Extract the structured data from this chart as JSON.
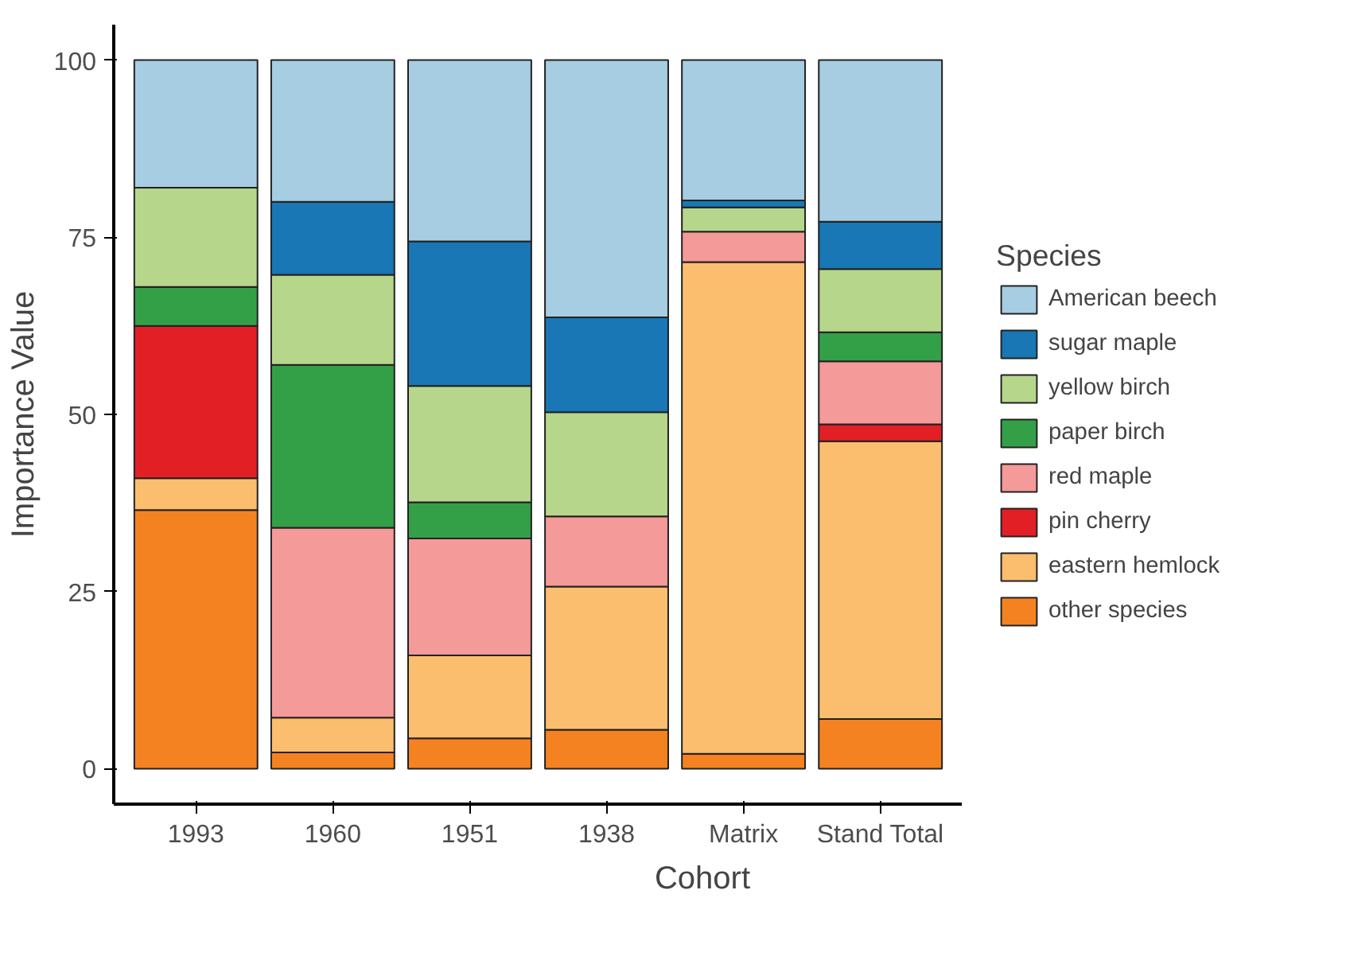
{
  "chart_data": {
    "type": "bar",
    "stacked": true,
    "xlabel": "Cohort",
    "ylabel": "Importance Value",
    "legend_title": "Species",
    "categories": [
      "1993",
      "1960",
      "1951",
      "1938",
      "Matrix",
      "Stand Total"
    ],
    "ylim": [
      -5,
      105
    ],
    "yticks": [
      0,
      25,
      50,
      75,
      100
    ],
    "grid": false,
    "legend": "right",
    "series": [
      {
        "name": "other species",
        "color": "#f58220",
        "values": [
          36.5,
          2.3,
          4.3,
          5.5,
          2.1,
          7
        ]
      },
      {
        "name": "eastern hemlock",
        "color": "#fbbe6e",
        "values": [
          4.5,
          4.9,
          11.7,
          20.2,
          69.4,
          39.2
        ]
      },
      {
        "name": "pin cherry",
        "color": "#e31f26",
        "values": [
          21.5,
          0,
          0,
          0,
          0,
          2.4
        ]
      },
      {
        "name": "red maple",
        "color": "#f49a99",
        "values": [
          0,
          26.8,
          16.5,
          9.9,
          4.3,
          8.9
        ]
      },
      {
        "name": "paper birch",
        "color": "#33a048",
        "values": [
          5.5,
          23,
          5.1,
          0,
          0,
          4.1
        ]
      },
      {
        "name": "yellow birch",
        "color": "#b6d78b",
        "values": [
          14,
          12.7,
          16.4,
          14.7,
          3.4,
          8.9
        ]
      },
      {
        "name": "sugar maple",
        "color": "#1877b4",
        "values": [
          0,
          10.3,
          20.4,
          13.4,
          1.0,
          6.7
        ]
      },
      {
        "name": "American beech",
        "color": "#a6cde2",
        "values": [
          18,
          20,
          25.6,
          36.3,
          19.8,
          22.8
        ]
      }
    ]
  }
}
